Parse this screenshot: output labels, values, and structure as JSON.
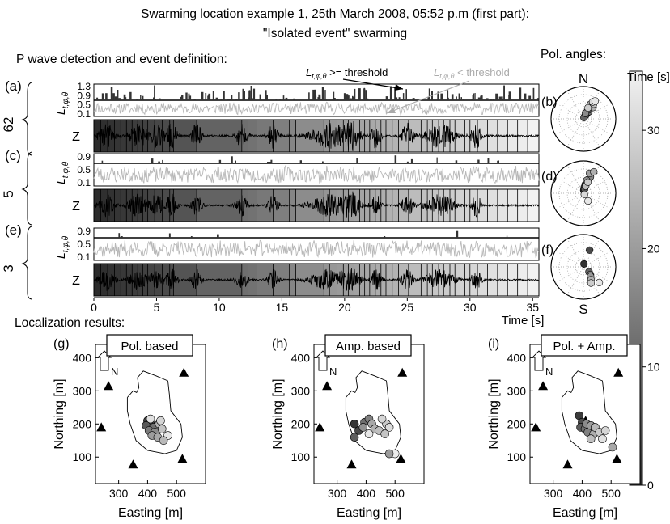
{
  "figure": {
    "title_line1": "Swarming location example 1, 25th March 2008, 05:52 p.m (first part):",
    "title_line2": "\"Isolated  event\" swarming",
    "detection_heading": "P wave detection and event definition:",
    "polar_heading": "Pol. angles:",
    "localization_heading": "Localization results:"
  },
  "traces": {
    "time_axis": {
      "label": "Time [s]",
      "xlim": [
        0,
        35.5
      ],
      "ticks": [
        0,
        5,
        10,
        15,
        20,
        25,
        30,
        35
      ]
    },
    "l_label": "L",
    "l_subscript": "t,φ,θ",
    "z_label": "Z",
    "annotation_above": ">= threshold",
    "annotation_below": "< threshold",
    "event_times_s": [
      0.55,
      1.1,
      1.65,
      2.15,
      2.6,
      3.05,
      3.5,
      3.9,
      4.3,
      4.85,
      5.45,
      6.05,
      6.35,
      8.2,
      11.8,
      12.3,
      13.0,
      14.3,
      15.6,
      16.1,
      18.35,
      18.8,
      19.4,
      19.9,
      20.3,
      20.75,
      21.2,
      21.6,
      22.0,
      22.45,
      22.9,
      23.3,
      23.8,
      24.3,
      25.1,
      26.1,
      26.6,
      27.0,
      27.5,
      27.9,
      28.4,
      28.8,
      29.2,
      29.6,
      30.0,
      30.6,
      31.4,
      32.2,
      33.0,
      33.8,
      34.6
    ],
    "bursts_s": [
      [
        1.0,
        0.6
      ],
      [
        3.5,
        0.7
      ],
      [
        5.0,
        0.5
      ],
      [
        6.2,
        0.45
      ],
      [
        8.2,
        0.4
      ],
      [
        11.8,
        0.45
      ],
      [
        14.3,
        0.4
      ],
      [
        18.8,
        1.5
      ],
      [
        20.6,
        0.6
      ],
      [
        22.5,
        0.4
      ],
      [
        25.0,
        0.45
      ],
      [
        27.6,
        1.1
      ],
      [
        30.5,
        0.4
      ]
    ],
    "rows": [
      {
        "id": "(a)",
        "side": "62",
        "l_ticks": [
          "1.3",
          "0.9",
          "0.5",
          "0.1"
        ],
        "l_ylim": [
          0.0,
          1.4
        ],
        "threshold": 0.7,
        "seed": 11,
        "spike_count": 140,
        "amp_scale": 1.0
      },
      {
        "id": "(c)",
        "side": "5",
        "l_ticks": [
          "0.9",
          "0.5",
          "0.1"
        ],
        "l_ylim": [
          0.0,
          1.0
        ],
        "threshold": 0.7,
        "seed": 23,
        "spike_count": 22,
        "amp_scale": 0.9
      },
      {
        "id": "(e)",
        "side": "3",
        "l_ticks": [
          "0.9",
          "0.5",
          "0.1"
        ],
        "l_ylim": [
          0.0,
          1.0
        ],
        "threshold": 0.7,
        "seed": 37,
        "spike_count": 8,
        "amp_scale": 0.85
      }
    ]
  },
  "polar": {
    "north": "N",
    "south": "S",
    "panels": [
      {
        "id": "(b)",
        "points": [
          [
            0.45,
            0.25
          ],
          [
            0.5,
            0.1
          ],
          [
            0.55,
            0.2
          ],
          [
            0.6,
            0.15
          ],
          [
            0.4,
            0.05
          ],
          [
            0.65,
            0.3
          ],
          [
            0.5,
            0.35
          ],
          [
            0.35,
            0.2
          ],
          [
            0.55,
            0.45
          ],
          [
            0.45,
            0.55
          ],
          [
            0.7,
            0.5
          ],
          [
            0.6,
            0.6
          ],
          [
            0.4,
            0.4
          ],
          [
            0.5,
            0.65
          ],
          [
            0.58,
            0.72
          ]
        ]
      },
      {
        "id": "(d)",
        "points": [
          [
            0.1,
            0.1
          ],
          [
            0.15,
            0.2
          ],
          [
            0.2,
            0.3
          ],
          [
            0.25,
            0.15
          ],
          [
            0.3,
            0.35
          ],
          [
            0.35,
            0.5
          ],
          [
            0.4,
            0.6
          ],
          [
            0.25,
            0.45
          ],
          [
            0.3,
            0.7
          ],
          [
            0.45,
            0.8
          ],
          [
            0.3,
            0.25
          ],
          [
            0.38,
            0.4
          ],
          [
            2.45,
            0.05
          ],
          [
            2.6,
            0.3
          ]
        ]
      },
      {
        "id": "(f)",
        "points": [
          [
            0.2,
            0.1
          ],
          [
            0.35,
            0.6
          ],
          [
            2.3,
            0.25
          ],
          [
            2.4,
            0.35
          ],
          [
            2.5,
            0.4
          ],
          [
            2.6,
            0.5
          ],
          [
            2.7,
            0.6
          ],
          [
            2.35,
            0.75
          ]
        ]
      }
    ]
  },
  "colorbar": {
    "label": "Time [s]",
    "ticks": [
      "0",
      "10",
      "20",
      "30"
    ],
    "range": [
      0,
      35
    ]
  },
  "maps": {
    "xlabel": "Easting [m]",
    "ylabel": "Northing [m]",
    "x_ticks": [
      300,
      400,
      500
    ],
    "y_ticks": [
      100,
      200,
      300,
      400
    ],
    "xlim": [
      220,
      600
    ],
    "ylim": [
      20,
      440
    ],
    "north": "N",
    "stations": [
      [
        265,
        315
      ],
      [
        240,
        190
      ],
      [
        350,
        78
      ],
      [
        412,
        210
      ],
      [
        525,
        355
      ],
      [
        520,
        95
      ]
    ],
    "outline": [
      [
        330,
        280
      ],
      [
        350,
        300
      ],
      [
        362,
        295
      ],
      [
        370,
        310
      ],
      [
        365,
        340
      ],
      [
        385,
        360
      ],
      [
        430,
        345
      ],
      [
        470,
        330
      ],
      [
        475,
        290
      ],
      [
        480,
        240
      ],
      [
        515,
        200
      ],
      [
        520,
        160
      ],
      [
        500,
        120
      ],
      [
        460,
        110
      ],
      [
        400,
        120
      ],
      [
        360,
        150
      ],
      [
        340,
        200
      ],
      [
        330,
        240
      ],
      [
        330,
        280
      ]
    ],
    "panels": [
      {
        "id": "(g)",
        "title": "Pol. based",
        "events": [
          [
            400,
            210,
            3
          ],
          [
            410,
            200,
            6
          ],
          [
            395,
            195,
            8
          ],
          [
            420,
            190,
            12
          ],
          [
            405,
            180,
            14
          ],
          [
            425,
            175,
            17
          ],
          [
            415,
            165,
            20
          ],
          [
            440,
            200,
            24
          ],
          [
            450,
            185,
            27
          ],
          [
            435,
            160,
            22
          ],
          [
            445,
            210,
            30
          ],
          [
            410,
            215,
            32
          ],
          [
            470,
            165,
            33
          ],
          [
            455,
            150,
            25
          ]
        ]
      },
      {
        "id": "(h)",
        "title": "Amp. based",
        "events": [
          [
            360,
            200,
            2
          ],
          [
            375,
            180,
            5
          ],
          [
            360,
            160,
            9
          ],
          [
            395,
            205,
            12
          ],
          [
            410,
            215,
            15
          ],
          [
            390,
            190,
            18
          ],
          [
            420,
            200,
            22
          ],
          [
            430,
            185,
            24
          ],
          [
            445,
            180,
            26
          ],
          [
            470,
            200,
            28
          ],
          [
            455,
            215,
            30
          ],
          [
            480,
            190,
            31
          ],
          [
            465,
            170,
            27
          ],
          [
            410,
            170,
            33
          ],
          [
            500,
            110,
            34
          ],
          [
            480,
            110,
            20
          ]
        ]
      },
      {
        "id": "(i)",
        "title": "Pol. + Amp.",
        "events": [
          [
            390,
            225,
            3
          ],
          [
            400,
            205,
            6
          ],
          [
            395,
            190,
            9
          ],
          [
            410,
            185,
            12
          ],
          [
            420,
            175,
            15
          ],
          [
            415,
            200,
            17
          ],
          [
            430,
            195,
            20
          ],
          [
            440,
            170,
            23
          ],
          [
            445,
            190,
            25
          ],
          [
            460,
            175,
            28
          ],
          [
            480,
            180,
            30
          ],
          [
            470,
            155,
            32
          ],
          [
            430,
            155,
            26
          ],
          [
            505,
            130,
            22
          ]
        ]
      }
    ]
  },
  "colors": {
    "dark": "#2a2a2a",
    "light": "#f2f2f2",
    "trace": "#000000",
    "below": "#b8b8b8",
    "above": "#333333"
  }
}
